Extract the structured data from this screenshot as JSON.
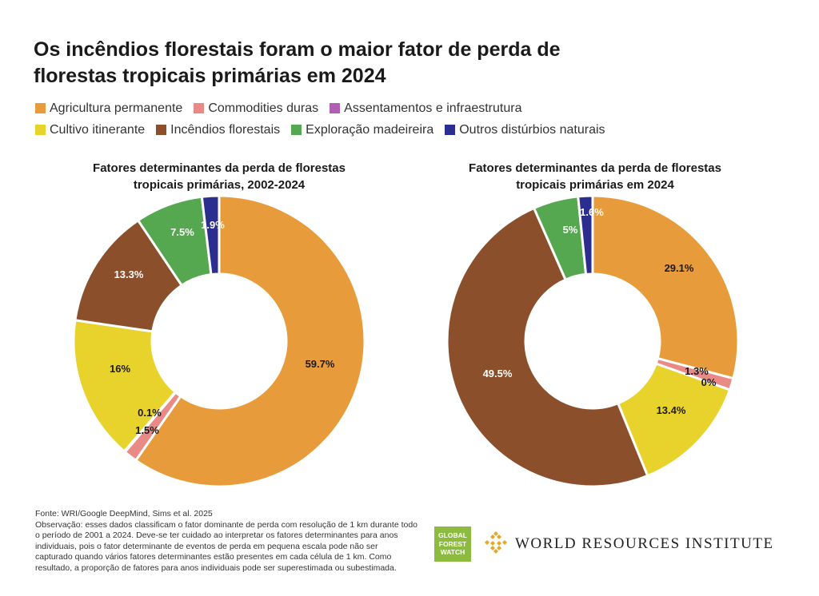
{
  "title": "Os incêndios florestais foram o maior fator de perda de florestas tropicais primárias em 2024",
  "legend": [
    {
      "label": "Agricultura permanente",
      "color": "#e89b3a"
    },
    {
      "label": "Commodities duras",
      "color": "#ea8a86"
    },
    {
      "label": "Assentamentos e infraestrutura",
      "color": "#b05fb5"
    },
    {
      "label": "Cultivo itinerante",
      "color": "#e8d22c"
    },
    {
      "label": "Incêndios florestais",
      "color": "#8b4f2c"
    },
    {
      "label": "Exploração madeireira",
      "color": "#55a84f"
    },
    {
      "label": "Outros distúrbios naturais",
      "color": "#2b2d8f"
    }
  ],
  "chart_data": [
    {
      "type": "pie",
      "title": "Fatores determinantes da perda de florestas tropicais primárias, 2002-2024",
      "categories": [
        "Agricultura permanente",
        "Commodities duras",
        "Assentamentos e infraestrutura",
        "Cultivo itinerante",
        "Incêndios florestais",
        "Exploração madeireira",
        "Outros distúrbios naturais"
      ],
      "values": [
        59.7,
        1.5,
        0.1,
        16,
        13.3,
        7.5,
        1.9
      ],
      "labels": [
        "59.7%",
        "1.5%",
        "0.1%",
        "16%",
        "13.3%",
        "7.5%",
        "1.9%"
      ]
    },
    {
      "type": "pie",
      "title": "Fatores determinantes da perda de florestas tropicais primárias em 2024",
      "categories": [
        "Agricultura permanente",
        "Commodities duras",
        "Assentamentos e infraestrutura",
        "Cultivo itinerante",
        "Incêndios florestais",
        "Exploração madeireira",
        "Outros distúrbios naturais"
      ],
      "values": [
        29.1,
        1.3,
        0,
        13.4,
        49.5,
        5,
        1.6
      ],
      "labels": [
        "29.1%",
        "1.3%",
        "0%",
        "13.4%",
        "49.5%",
        "5%",
        "1.6%"
      ]
    }
  ],
  "footer": {
    "source": "Fonte: WRI/Google DeepMind, Sims et al. 2025",
    "note": "Observação: esses dados classificam o fator dominante de perda com resolução de 1 km durante todo o período de 2001 a 2024. Deve-se ter cuidado ao interpretar os fatores determinantes para anos individuais, pois o fator determinante de eventos de perda em pequena escala pode não ser capturado quando vários fatores determinantes estão presentes em cada célula de 1 km. Como resultado, a proporção de fatores para anos individuais pode ser superestimada ou subestimada."
  },
  "logos": {
    "gfw": "GLOBAL FOREST WATCH",
    "wri": "WORLD RESOURCES INSTITUTE"
  }
}
